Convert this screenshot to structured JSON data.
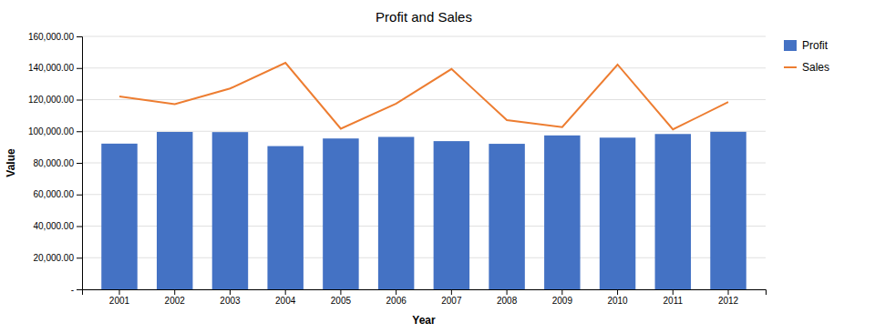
{
  "chart_data": {
    "type": "bar",
    "title": "Profit and Sales",
    "xlabel": "Year",
    "ylabel": "Value",
    "categories": [
      "2001",
      "2002",
      "2003",
      "2004",
      "2005",
      "2006",
      "2007",
      "2008",
      "2009",
      "2010",
      "2011",
      "2012"
    ],
    "series": [
      {
        "name": "Profit",
        "type": "bar",
        "color": "#4472C4",
        "values": [
          92164,
          99560,
          99470,
          90602,
          95420,
          96414,
          93746,
          92049,
          97364,
          95956,
          98261,
          99645
        ]
      },
      {
        "name": "Sales",
        "type": "line",
        "color": "#ED7D31",
        "values": [
          122021,
          117090,
          127038,
          143316,
          101623,
          117450,
          139397,
          107012,
          102643,
          142179,
          101168,
          118449
        ]
      }
    ],
    "ylim": [
      0,
      160000
    ],
    "yticks": [
      {
        "value": 0,
        "label": "-"
      },
      {
        "value": 20000,
        "label": "20,000.00"
      },
      {
        "value": 40000,
        "label": "40,000.00"
      },
      {
        "value": 60000,
        "label": "60,000.00"
      },
      {
        "value": 80000,
        "label": "80,000.00"
      },
      {
        "value": 100000,
        "label": "100,000.00"
      },
      {
        "value": 120000,
        "label": "120,000.00"
      },
      {
        "value": 140000,
        "label": "140,000.00"
      },
      {
        "value": 160000,
        "label": "160,000.00"
      }
    ],
    "grid": true,
    "legend": "right"
  }
}
